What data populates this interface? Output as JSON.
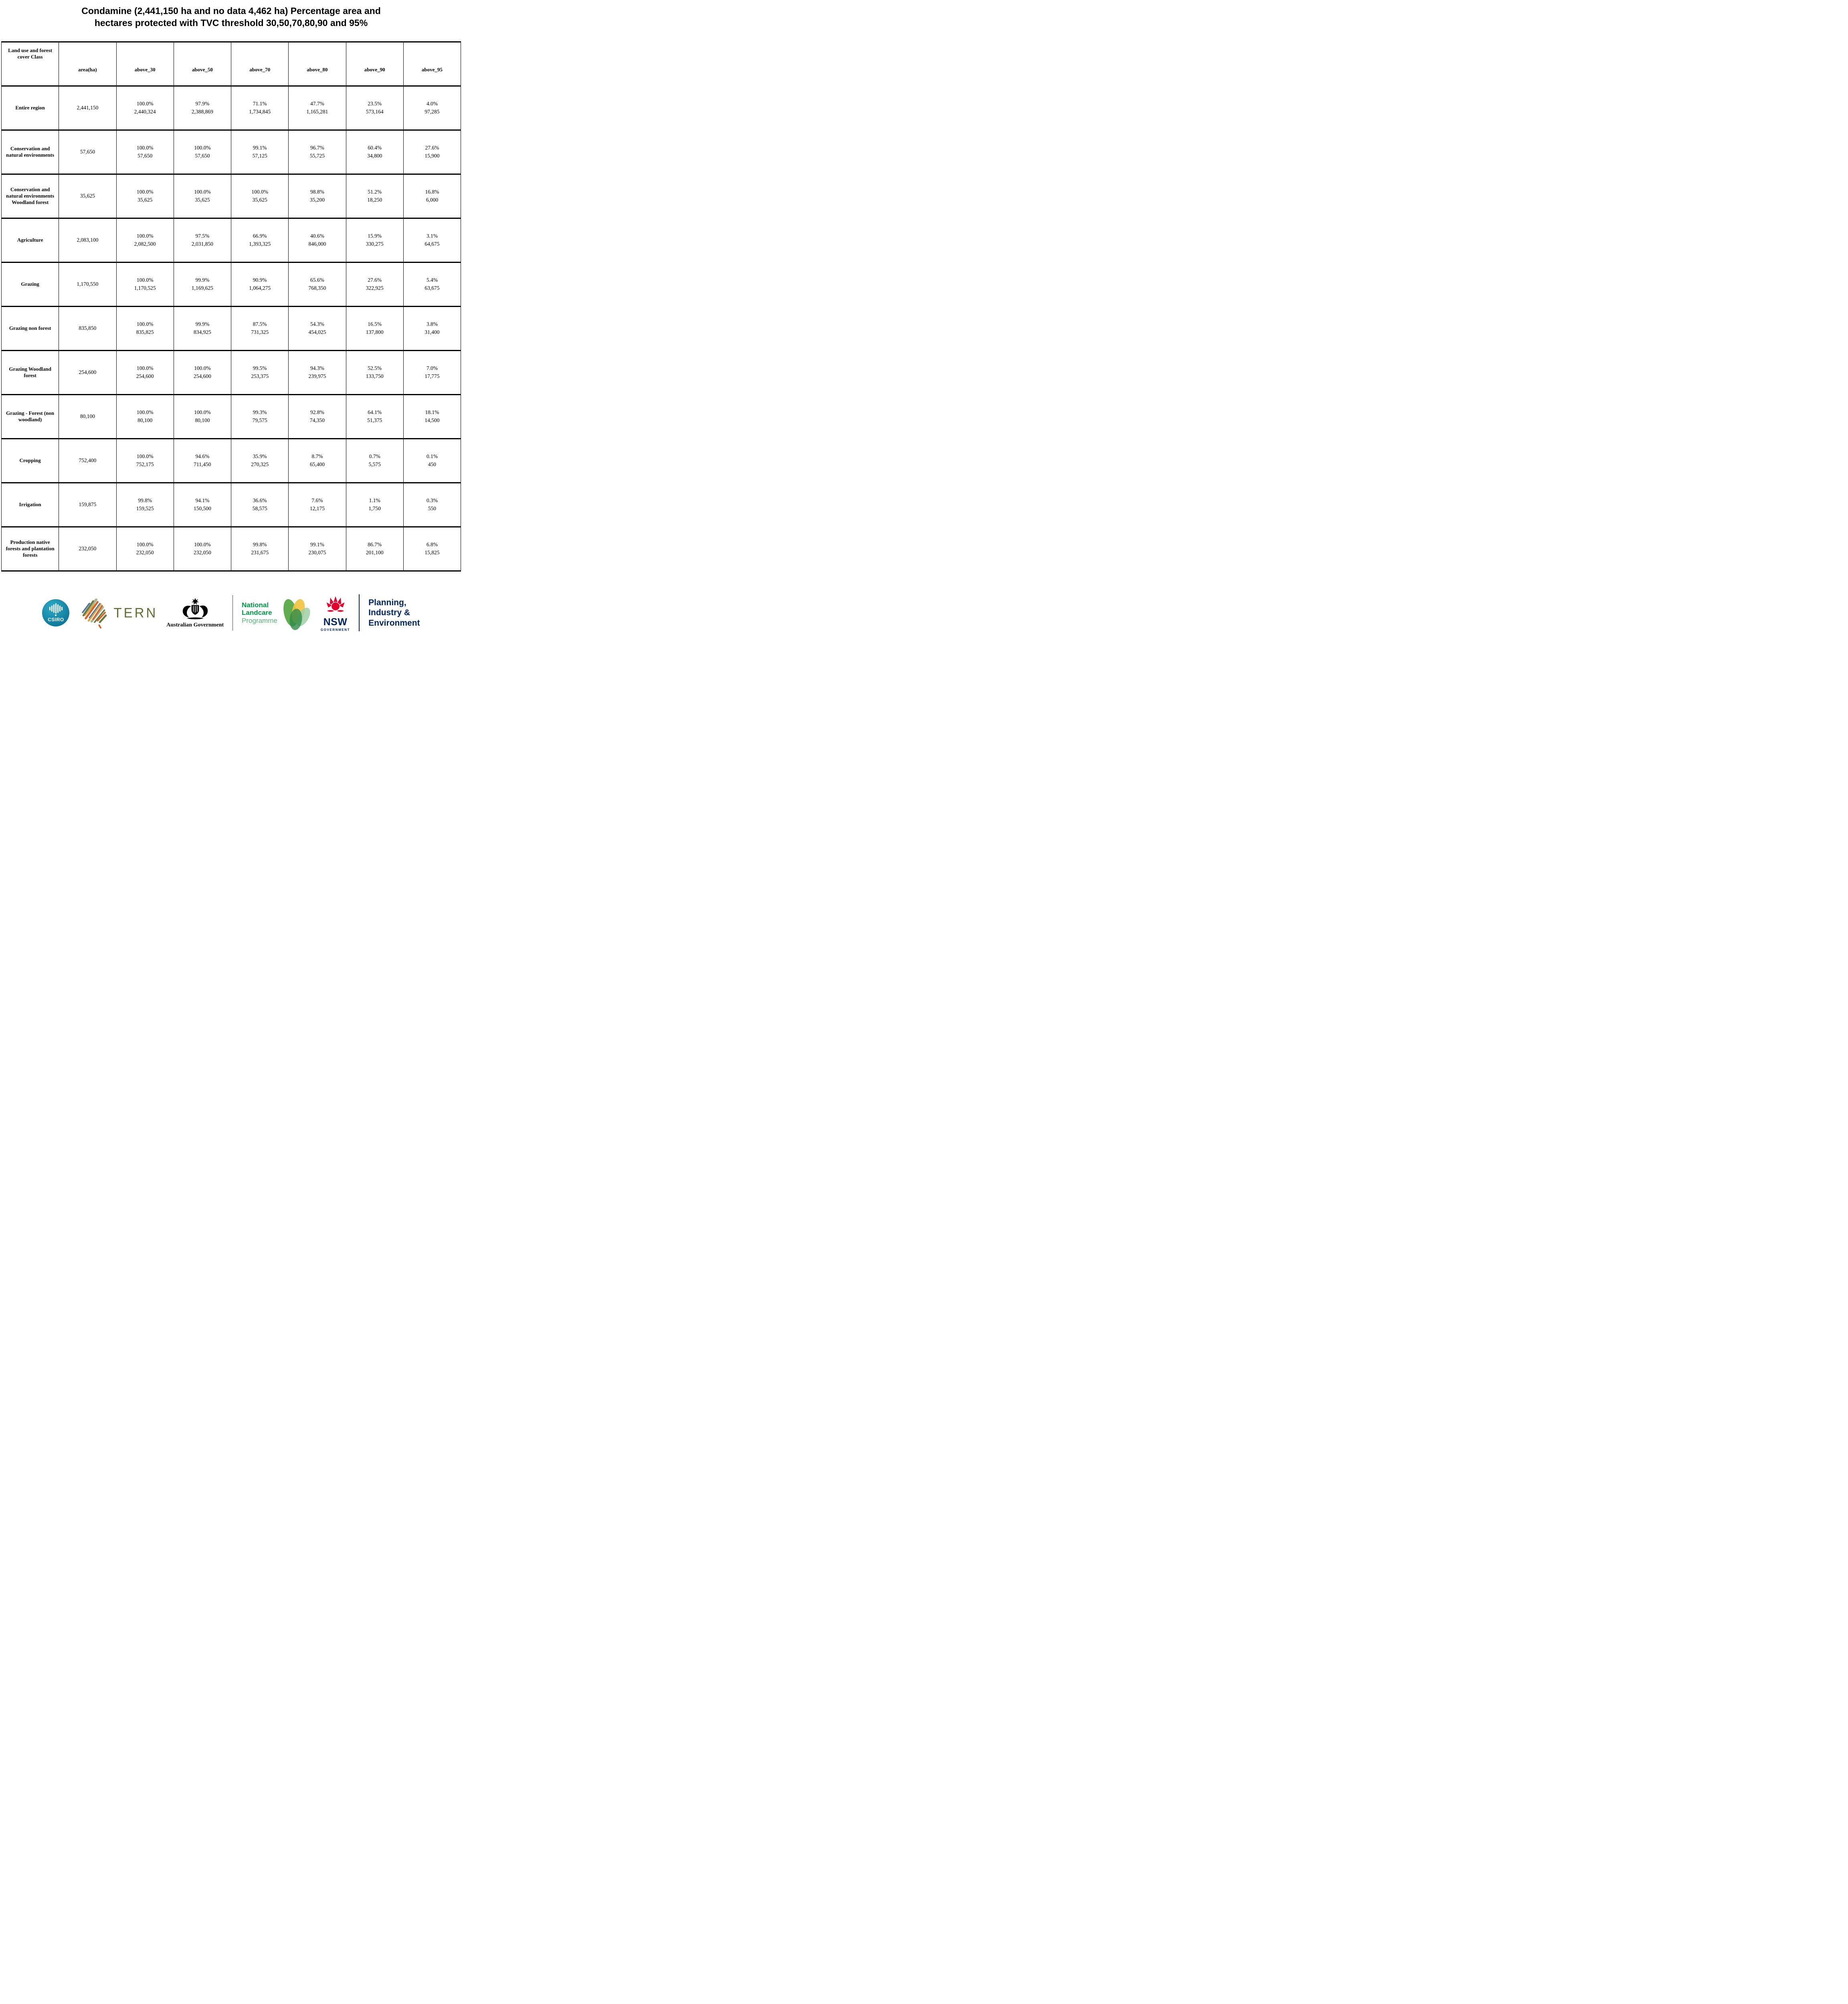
{
  "title": {
    "line1": "Condamine (2,441,150 ha and no data 4,462 ha) Percentage area and",
    "line2": "hectares protected with TVC threshold 30,50,70,80,90 and 95%"
  },
  "table": {
    "columns": [
      "Land use and forest cover Class",
      "area(ha)",
      "above_30",
      "above_50",
      "above_70",
      "above_80",
      "above_90",
      "above_95"
    ],
    "rows": [
      {
        "class": "Entire region",
        "area": "2,441,150",
        "cells": [
          [
            "100.0%",
            "2,440,324"
          ],
          [
            "97.9%",
            "2,388,869"
          ],
          [
            "71.1%",
            "1,734,845"
          ],
          [
            "47.7%",
            "1,165,281"
          ],
          [
            "23.5%",
            "573,164"
          ],
          [
            "4.0%",
            "97,285"
          ]
        ]
      },
      {
        "class": "Conservation and natural environments",
        "area": "57,650",
        "cells": [
          [
            "100.0%",
            "57,650"
          ],
          [
            "100.0%",
            "57,650"
          ],
          [
            "99.1%",
            "57,125"
          ],
          [
            "96.7%",
            "55,725"
          ],
          [
            "60.4%",
            "34,800"
          ],
          [
            "27.6%",
            "15,900"
          ]
        ]
      },
      {
        "class": "Conservation and natural environments Woodland forest",
        "area": "35,625",
        "cells": [
          [
            "100.0%",
            "35,625"
          ],
          [
            "100.0%",
            "35,625"
          ],
          [
            "100.0%",
            "35,625"
          ],
          [
            "98.8%",
            "35,200"
          ],
          [
            "51.2%",
            "18,250"
          ],
          [
            "16.8%",
            "6,000"
          ]
        ]
      },
      {
        "class": "Agriculture",
        "area": "2,083,100",
        "cells": [
          [
            "100.0%",
            "2,082,500"
          ],
          [
            "97.5%",
            "2,031,850"
          ],
          [
            "66.9%",
            "1,393,325"
          ],
          [
            "40.6%",
            "846,000"
          ],
          [
            "15.9%",
            "330,275"
          ],
          [
            "3.1%",
            "64,675"
          ]
        ]
      },
      {
        "class": "Grazing",
        "area": "1,170,550",
        "cells": [
          [
            "100.0%",
            "1,170,525"
          ],
          [
            "99.9%",
            "1,169,625"
          ],
          [
            "90.9%",
            "1,064,275"
          ],
          [
            "65.6%",
            "768,350"
          ],
          [
            "27.6%",
            "322,925"
          ],
          [
            "5.4%",
            "63,675"
          ]
        ]
      },
      {
        "class": "Grazing non forest",
        "area": "835,850",
        "cells": [
          [
            "100.0%",
            "835,825"
          ],
          [
            "99.9%",
            "834,925"
          ],
          [
            "87.5%",
            "731,325"
          ],
          [
            "54.3%",
            "454,025"
          ],
          [
            "16.5%",
            "137,800"
          ],
          [
            "3.8%",
            "31,400"
          ]
        ]
      },
      {
        "class": "Grazing Woodland forest",
        "area": "254,600",
        "cells": [
          [
            "100.0%",
            "254,600"
          ],
          [
            "100.0%",
            "254,600"
          ],
          [
            "99.5%",
            "253,375"
          ],
          [
            "94.3%",
            "239,975"
          ],
          [
            "52.5%",
            "133,750"
          ],
          [
            "7.0%",
            "17,775"
          ]
        ]
      },
      {
        "class": "Grazing - Forest (non woodland)",
        "area": "80,100",
        "cells": [
          [
            "100.0%",
            "80,100"
          ],
          [
            "100.0%",
            "80,100"
          ],
          [
            "99.3%",
            "79,575"
          ],
          [
            "92.8%",
            "74,350"
          ],
          [
            "64.1%",
            "51,375"
          ],
          [
            "18.1%",
            "14,500"
          ]
        ]
      },
      {
        "class": "Cropping",
        "area": "752,400",
        "cells": [
          [
            "100.0%",
            "752,175"
          ],
          [
            "94.6%",
            "711,450"
          ],
          [
            "35.9%",
            "270,325"
          ],
          [
            "8.7%",
            "65,400"
          ],
          [
            "0.7%",
            "5,575"
          ],
          [
            "0.1%",
            "450"
          ]
        ]
      },
      {
        "class": "Irrigation",
        "area": "159,875",
        "cells": [
          [
            "99.8%",
            "159,525"
          ],
          [
            "94.1%",
            "150,500"
          ],
          [
            "36.6%",
            "58,575"
          ],
          [
            "7.6%",
            "12,175"
          ],
          [
            "1.1%",
            "1,750"
          ],
          [
            "0.3%",
            "550"
          ]
        ]
      },
      {
        "class": "Production native forests and plantation forests",
        "area": "232,050",
        "cells": [
          [
            "100.0%",
            "232,050"
          ],
          [
            "100.0%",
            "232,050"
          ],
          [
            "99.8%",
            "231,675"
          ],
          [
            "99.1%",
            "230,075"
          ],
          [
            "86.7%",
            "201,100"
          ],
          [
            "6.8%",
            "15,825"
          ]
        ]
      }
    ]
  },
  "footer": {
    "csiro_label": "CSIRO",
    "tern_label": "TERN",
    "aus_gov_label": "Australian Government",
    "landcare": {
      "line1": "National",
      "line2": "Landcare",
      "line3": "Programme"
    },
    "nsw": {
      "line1": "NSW",
      "line2": "GOVERNMENT"
    },
    "planning": {
      "line1": "Planning,",
      "line2": "Industry &",
      "line3": "Environment"
    }
  },
  "colors": {
    "csiro_teal": "#1795b5",
    "tern_olive": "#5f6e31",
    "landcare_green": "#009a44",
    "landcare_light_green": "#55b377",
    "nsw_red": "#e4002b",
    "navy": "#002664",
    "table_border": "#000000"
  }
}
